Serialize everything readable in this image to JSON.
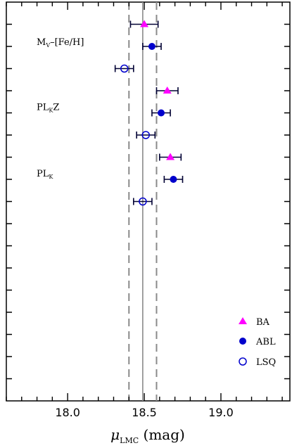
{
  "chart_data": {
    "type": "scatter",
    "xlabel": {
      "symbol": "μ",
      "sub": "LMC",
      "unit": " (mag)"
    },
    "xlim": [
      17.6,
      19.45
    ],
    "x_ticks": [
      "18.0",
      "18.5",
      "19.0"
    ],
    "y_rows": 18,
    "reference_lines": {
      "solid": 18.49,
      "dashed": [
        18.4,
        18.58
      ]
    },
    "group_labels": [
      {
        "id": "mv",
        "base": "M",
        "sub": "V",
        "rest": "–[Fe/H]"
      },
      {
        "id": "plkz",
        "base": "PL",
        "sub": "K",
        "rest": "Z"
      },
      {
        "id": "plk",
        "base": "PL",
        "sub": "K",
        "rest": ""
      }
    ],
    "series": [
      {
        "name": "BA",
        "marker": "triangle",
        "color": "#ff00ff",
        "points": [
          {
            "group": "mv",
            "x": 18.5,
            "xerr": 0.09
          },
          {
            "group": "plkz",
            "x": 18.65,
            "xerr": 0.07
          },
          {
            "group": "plk",
            "x": 18.67,
            "xerr": 0.07
          }
        ]
      },
      {
        "name": "ABL",
        "marker": "filled-circle",
        "color": "#0000cc",
        "points": [
          {
            "group": "mv",
            "x": 18.55,
            "xerr": 0.06
          },
          {
            "group": "plkz",
            "x": 18.61,
            "xerr": 0.06
          },
          {
            "group": "plk",
            "x": 18.69,
            "xerr": 0.06
          }
        ]
      },
      {
        "name": "LSQ",
        "marker": "open-circle",
        "color": "#0000cc",
        "points": [
          {
            "group": "mv",
            "x": 18.37,
            "xerr": 0.06
          },
          {
            "group": "plkz",
            "x": 18.51,
            "xerr": 0.06
          },
          {
            "group": "plk",
            "x": 18.49,
            "xerr": 0.06
          }
        ]
      }
    ],
    "legend_placement": "bottom-right"
  }
}
